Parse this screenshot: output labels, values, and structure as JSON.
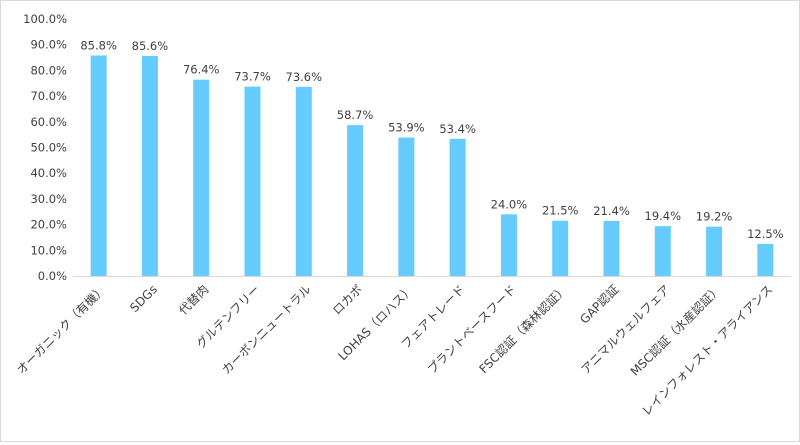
{
  "chart_data": {
    "type": "bar",
    "title": "",
    "xlabel": "",
    "ylabel": "",
    "ylim": [
      0,
      100
    ],
    "y_tick_step": 10,
    "y_tick_format": "percent_1dp",
    "y_ticks": [
      "0.0%",
      "10.0%",
      "20.0%",
      "30.0%",
      "40.0%",
      "50.0%",
      "60.0%",
      "70.0%",
      "80.0%",
      "90.0%",
      "100.0%"
    ],
    "grid": false,
    "legend": "none",
    "bar_color": "#66ccff",
    "categories": [
      "オーガニック（有機）",
      "SDGs",
      "代替肉",
      "グルテンフリー",
      "カーボンニュートラル",
      "ロカボ",
      "LOHAS（ロハス）",
      "フェアトレード",
      "プラントベースフード",
      "FSC認証（森林認証）",
      "GAP認証",
      "アニマルウェルフェア",
      "MSC認証（水産認証）",
      "レインフォレスト・アライアンス"
    ],
    "values": [
      85.8,
      85.6,
      76.4,
      73.7,
      73.6,
      58.7,
      53.9,
      53.4,
      24.0,
      21.5,
      21.4,
      19.4,
      19.2,
      12.5
    ],
    "data_labels": [
      "85.8%",
      "85.6%",
      "76.4%",
      "73.7%",
      "73.6%",
      "58.7%",
      "53.9%",
      "53.4%",
      "24.0%",
      "21.5%",
      "21.4%",
      "19.4%",
      "19.2%",
      "12.5%"
    ]
  }
}
